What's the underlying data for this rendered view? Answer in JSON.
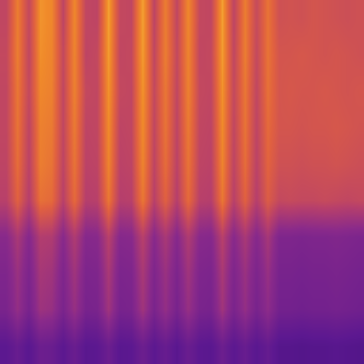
{
  "chart_data": {
    "type": "heatmap",
    "tick_labels": false,
    "zlim": [
      0,
      100
    ],
    "cells": [
      [
        25,
        30,
        24,
        32,
        31,
        25,
        31,
        24,
        25,
        32,
        24,
        25,
        32,
        25,
        30,
        24,
        31,
        25,
        24,
        32,
        25,
        30,
        24,
        29,
        22,
        22,
        21,
        22,
        22,
        23,
        22,
        21
      ],
      [
        38,
        48,
        37,
        51,
        49,
        38,
        49,
        37,
        38,
        52,
        37,
        38,
        52,
        38,
        48,
        37,
        49,
        38,
        37,
        52,
        38,
        48,
        37,
        46,
        35,
        35,
        34,
        35,
        35,
        36,
        35,
        34
      ],
      [
        40,
        50,
        39,
        54,
        52,
        40,
        52,
        39,
        40,
        55,
        39,
        40,
        55,
        40,
        50,
        39,
        52,
        40,
        39,
        55,
        40,
        50,
        39,
        49,
        37,
        37,
        36,
        37,
        37,
        38,
        37,
        36
      ],
      [
        44,
        55,
        43,
        58,
        57,
        44,
        57,
        43,
        44,
        60,
        43,
        44,
        60,
        44,
        55,
        43,
        57,
        44,
        43,
        60,
        44,
        55,
        43,
        54,
        40,
        40,
        39,
        40,
        40,
        41,
        40,
        39
      ],
      [
        60,
        75,
        59,
        80,
        78,
        60,
        78,
        59,
        60,
        82,
        59,
        60,
        82,
        60,
        75,
        59,
        78,
        60,
        59,
        82,
        60,
        75,
        59,
        73,
        64,
        65,
        64,
        64,
        65,
        64,
        63,
        64
      ],
      [
        62,
        79,
        61,
        84,
        81,
        62,
        81,
        61,
        62,
        86,
        61,
        62,
        86,
        62,
        79,
        61,
        81,
        62,
        61,
        86,
        62,
        79,
        61,
        76,
        68,
        68,
        67,
        68,
        68,
        69,
        68,
        67
      ],
      [
        63,
        81,
        62,
        85,
        83,
        63,
        83,
        62,
        63,
        88,
        62,
        63,
        88,
        63,
        81,
        62,
        83,
        63,
        62,
        88,
        63,
        81,
        62,
        78,
        70,
        70,
        69,
        70,
        70,
        71,
        70,
        69
      ],
      [
        63,
        82,
        64,
        87,
        85,
        63,
        85,
        64,
        63,
        90,
        64,
        63,
        90,
        64,
        82,
        63,
        85,
        64,
        63,
        90,
        64,
        82,
        63,
        80,
        70,
        71,
        70,
        70,
        71,
        70,
        69,
        70
      ],
      [
        64,
        84,
        63,
        89,
        86,
        64,
        86,
        62,
        64,
        92,
        63,
        64,
        92,
        63,
        84,
        64,
        86,
        63,
        64,
        92,
        63,
        84,
        64,
        81,
        70,
        70,
        71,
        70,
        69,
        70,
        69,
        68
      ],
      [
        63,
        84,
        64,
        90,
        87,
        62,
        87,
        63,
        62,
        93,
        64,
        63,
        93,
        62,
        84,
        63,
        87,
        64,
        63,
        93,
        62,
        84,
        65,
        81,
        68,
        69,
        68,
        70,
        69,
        68,
        67,
        68
      ]
    ]
  }
}
